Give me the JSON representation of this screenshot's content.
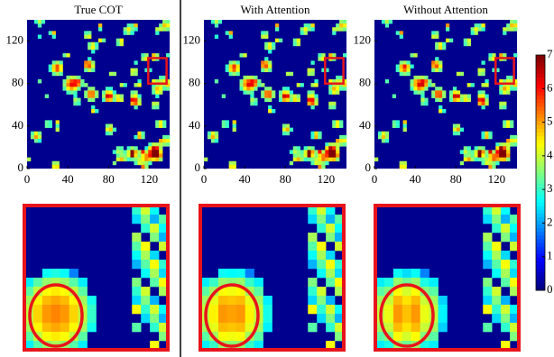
{
  "chart_data": [
    {
      "type": "heatmap",
      "title": "True COT",
      "xlim": [
        0,
        140
      ],
      "ylim": [
        0,
        140
      ],
      "xticks": [
        0,
        40,
        80,
        120
      ],
      "yticks": [
        0,
        40,
        80,
        120
      ]
    },
    {
      "type": "heatmap",
      "title": "With Attention",
      "xlim": [
        0,
        140
      ],
      "ylim": [
        0,
        140
      ],
      "xticks": [
        0,
        40,
        80,
        120
      ],
      "yticks": [
        0,
        40,
        80,
        120
      ]
    },
    {
      "type": "heatmap",
      "title": "Without Attention",
      "xlim": [
        0,
        140
      ],
      "ylim": [
        0,
        140
      ],
      "xticks": [
        0,
        40,
        80,
        120
      ],
      "yticks": [
        0,
        40,
        80,
        120
      ]
    }
  ],
  "colorbar": {
    "lim": [
      0,
      7
    ],
    "ticks": [
      0,
      1,
      2,
      3,
      4,
      5,
      6,
      7
    ]
  }
}
